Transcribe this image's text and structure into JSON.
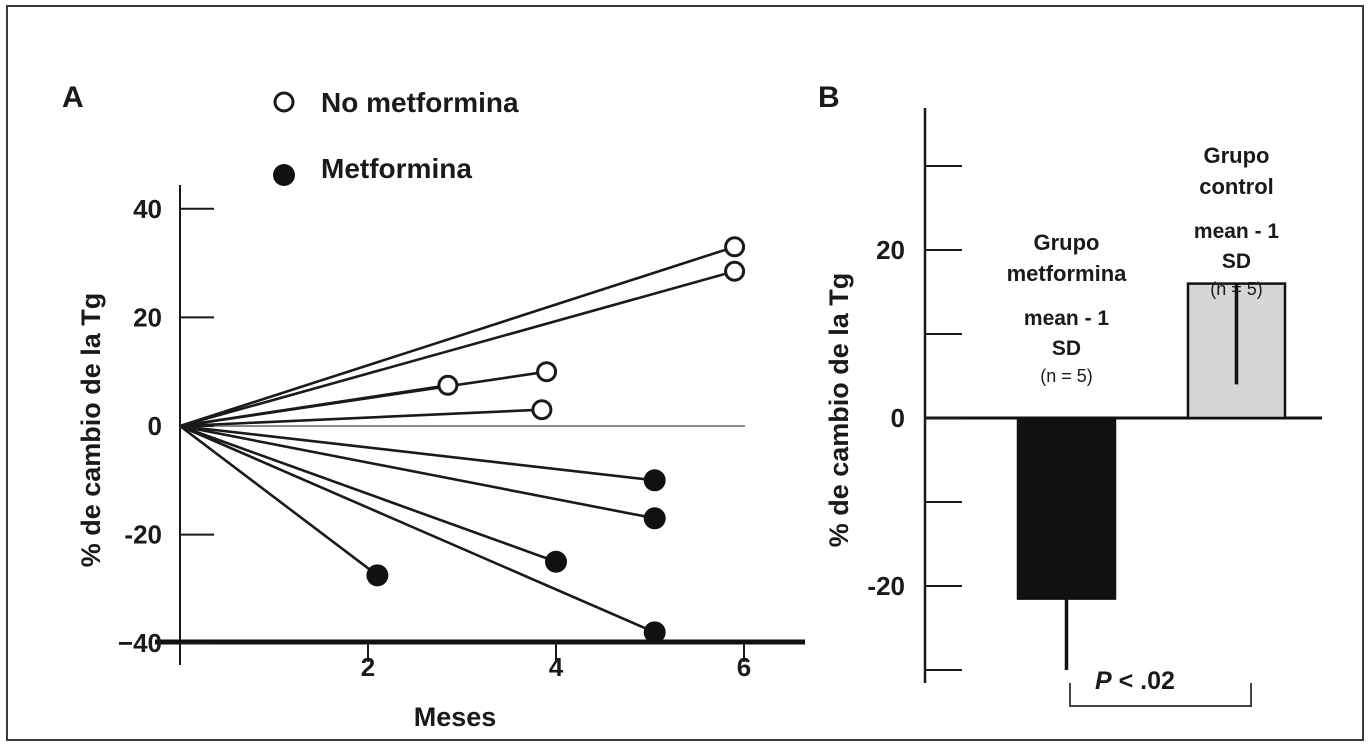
{
  "chart_data": [
    {
      "panel": "A",
      "type": "line",
      "xlabel": "Meses",
      "ylabel": "% de cambio de la Tg",
      "xlim": [
        0,
        6.6
      ],
      "ylim": [
        -45,
        48
      ],
      "xticks": [
        2,
        4,
        6
      ],
      "yticks": [
        40,
        20,
        0,
        -20,
        -40
      ],
      "ytick_labels": [
        "40",
        "20",
        "0",
        "-20",
        "−40"
      ],
      "legend": {
        "placement": "top",
        "entries": [
          {
            "label": "No metformina",
            "marker": "open-circle"
          },
          {
            "label": "Metformina",
            "marker": "filled-circle"
          }
        ]
      },
      "series": [
        {
          "group": "No metformina",
          "marker": "open",
          "points": [
            [
              0,
              0
            ],
            [
              5.9,
              33
            ]
          ]
        },
        {
          "group": "No metformina",
          "marker": "open",
          "points": [
            [
              0,
              0
            ],
            [
              5.9,
              28.5
            ]
          ]
        },
        {
          "group": "No metformina",
          "marker": "open",
          "points": [
            [
              0,
              0
            ],
            [
              3.9,
              10
            ]
          ]
        },
        {
          "group": "No metformina",
          "marker": "open",
          "points": [
            [
              0,
              0
            ],
            [
              2.85,
              7.5
            ]
          ]
        },
        {
          "group": "No metformina",
          "marker": "open",
          "points": [
            [
              0,
              0
            ],
            [
              3.85,
              3
            ]
          ]
        },
        {
          "group": "Metformina",
          "marker": "filled",
          "points": [
            [
              0,
              0
            ],
            [
              5.05,
              -10
            ]
          ]
        },
        {
          "group": "Metformina",
          "marker": "filled",
          "points": [
            [
              0,
              0
            ],
            [
              5.05,
              -17
            ]
          ]
        },
        {
          "group": "Metformina",
          "marker": "filled",
          "points": [
            [
              0,
              0
            ],
            [
              4.0,
              -25
            ]
          ]
        },
        {
          "group": "Metformina",
          "marker": "filled",
          "points": [
            [
              0,
              0
            ],
            [
              5.05,
              -38
            ]
          ]
        },
        {
          "group": "Metformina",
          "marker": "filled",
          "points": [
            [
              0,
              0
            ],
            [
              2.1,
              -27.5
            ]
          ]
        }
      ]
    },
    {
      "panel": "B",
      "type": "bar",
      "ylabel": "% de cambio de la Tg",
      "ylim": [
        -30,
        37
      ],
      "yticks": [
        20,
        0,
        -20
      ],
      "ytick_labels": [
        "20",
        "0",
        "-20"
      ],
      "minor_ticks": [
        30,
        10,
        -10,
        -30
      ],
      "categories": [
        "Grupo metformina",
        "Grupo control"
      ],
      "bars": [
        {
          "name_lines": [
            "Grupo",
            "metformina"
          ],
          "sub_lines": [
            "mean - 1",
            "SD"
          ],
          "n_label": "(n = 5)",
          "value": -21.5,
          "error_end": -30,
          "color": "#111111"
        },
        {
          "name_lines": [
            "Grupo",
            "control"
          ],
          "sub_lines": [
            "mean - 1",
            "SD"
          ],
          "n_label": "(n = 5)",
          "value": 16,
          "error_end": 4,
          "color": "#d6d6d6"
        }
      ],
      "annotation": {
        "p_symbol": "P",
        "p_text": " <  .02"
      }
    }
  ]
}
